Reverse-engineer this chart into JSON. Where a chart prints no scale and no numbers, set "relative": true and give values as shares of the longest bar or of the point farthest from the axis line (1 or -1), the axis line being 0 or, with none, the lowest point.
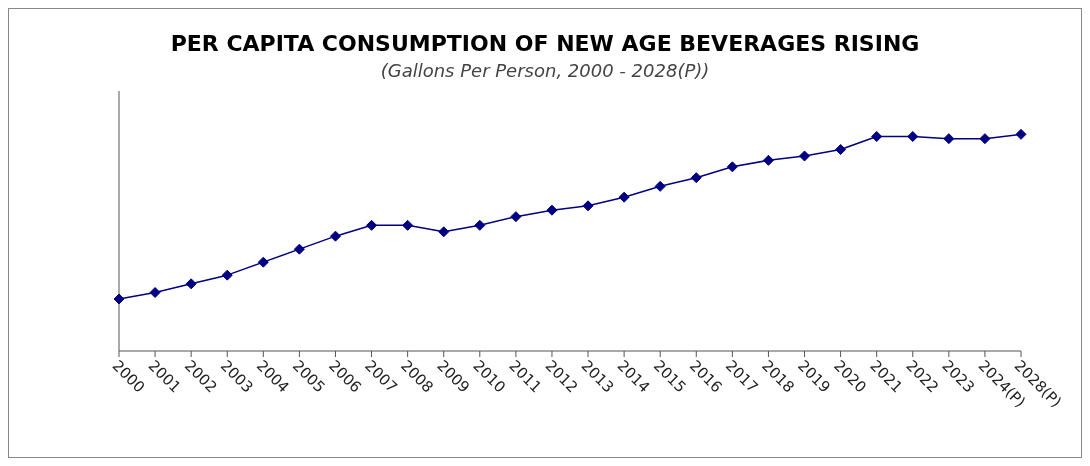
{
  "chart_data": {
    "type": "line",
    "title": "PER CAPITA CONSUMPTION OF NEW AGE BEVERAGES RISING",
    "subtitle": "(Gallons Per Person, 2000 - 2028(P))",
    "relative": true,
    "categories": [
      "2000",
      "2001",
      "2002",
      "2003",
      "2004",
      "2005",
      "2006",
      "2007",
      "2008",
      "2009",
      "2010",
      "2011",
      "2012",
      "2013",
      "2014",
      "2015",
      "2016",
      "2017",
      "2018",
      "2019",
      "2020",
      "2021",
      "2022",
      "2023",
      "2024(P)",
      "2028(P)"
    ],
    "series": [
      {
        "color": "#000080",
        "values": [
          0.24,
          0.27,
          0.31,
          0.35,
          0.41,
          0.47,
          0.53,
          0.58,
          0.58,
          0.55,
          0.58,
          0.62,
          0.65,
          0.67,
          0.71,
          0.76,
          0.8,
          0.85,
          0.88,
          0.9,
          0.93,
          0.99,
          0.99,
          0.98,
          0.98,
          1
        ]
      }
    ],
    "marker": "diamond",
    "grid": false,
    "legend": false
  }
}
